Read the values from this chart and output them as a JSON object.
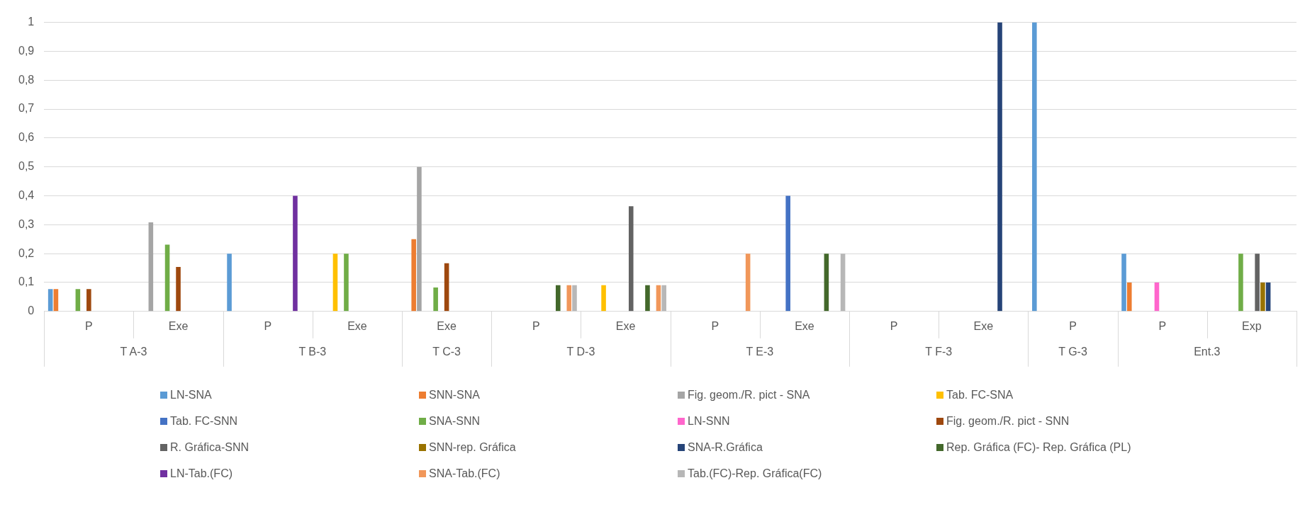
{
  "chart_data": {
    "type": "bar",
    "categories": [
      "P",
      "Exe",
      "P",
      "Exe",
      "Exe",
      "P",
      "Exe",
      "P",
      "Exe",
      "P",
      "Exe",
      "P",
      "P",
      "Exp"
    ],
    "series": [
      {
        "name": "LN-SNA",
        "color": "#5b9bd5",
        "values": [
          0.077,
          null,
          0.2,
          null,
          null,
          null,
          null,
          null,
          null,
          null,
          null,
          1,
          0.2,
          null
        ]
      },
      {
        "name": "SNN-SNA",
        "color": "#ed7d31",
        "values": [
          0.077,
          null,
          null,
          null,
          0.25,
          null,
          null,
          null,
          null,
          null,
          null,
          null,
          0.1,
          null
        ]
      },
      {
        "name": "Fig. geom./R. pict - SNA",
        "color": "#a5a5a5",
        "values": [
          null,
          0.308,
          null,
          null,
          0.5,
          null,
          null,
          null,
          null,
          null,
          null,
          null,
          null,
          null
        ]
      },
      {
        "name": "Tab. FC-SNA",
        "color": "#ffc000",
        "values": [
          null,
          null,
          null,
          0.2,
          null,
          null,
          0.091,
          null,
          null,
          null,
          null,
          null,
          null,
          null
        ]
      },
      {
        "name": "Tab. FC-SNN",
        "color": "#4472c4",
        "values": [
          null,
          null,
          null,
          null,
          null,
          null,
          null,
          null,
          0.4,
          null,
          null,
          null,
          null,
          null
        ]
      },
      {
        "name": "SNA-SNN",
        "color": "#70ad47",
        "values": [
          0.077,
          0.231,
          null,
          0.2,
          0.083,
          null,
          null,
          null,
          null,
          null,
          null,
          null,
          null,
          0.2
        ]
      },
      {
        "name": "LN-SNN",
        "color": "#ff66cc",
        "values": [
          null,
          null,
          null,
          null,
          null,
          null,
          null,
          null,
          null,
          null,
          null,
          null,
          0.1,
          null
        ]
      },
      {
        "name": "Fig. geom./R. pict - SNN",
        "color": "#9e480e",
        "values": [
          0.077,
          0.154,
          null,
          null,
          0.167,
          null,
          null,
          null,
          null,
          null,
          null,
          null,
          null,
          null
        ]
      },
      {
        "name": "R. Gráfica-SNN",
        "color": "#636363",
        "values": [
          null,
          null,
          null,
          null,
          null,
          null,
          0.364,
          null,
          null,
          null,
          null,
          null,
          null,
          0.2
        ]
      },
      {
        "name": "SNN-rep. Gráfica",
        "color": "#997300",
        "values": [
          null,
          null,
          null,
          null,
          null,
          null,
          null,
          null,
          null,
          null,
          null,
          null,
          null,
          0.1
        ]
      },
      {
        "name": "SNA-R.Gráfica",
        "color": "#264478",
        "values": [
          null,
          null,
          null,
          null,
          null,
          null,
          null,
          null,
          null,
          null,
          1,
          null,
          null,
          0.1
        ]
      },
      {
        "name": "Rep. Gráfica (FC)- Rep. Gráfica (PL)",
        "color": "#43682b",
        "values": [
          null,
          null,
          null,
          null,
          null,
          0.091,
          0.091,
          null,
          0.2,
          null,
          null,
          null,
          null,
          null
        ]
      },
      {
        "name": "LN-Tab.(FC)",
        "color": "#7030a0",
        "values": [
          null,
          null,
          0.4,
          null,
          null,
          null,
          null,
          null,
          null,
          null,
          null,
          null,
          null,
          null
        ]
      },
      {
        "name": "SNA-Tab.(FC)",
        "color": "#f1975a",
        "values": [
          null,
          null,
          null,
          null,
          null,
          0.091,
          0.091,
          0.2,
          null,
          null,
          null,
          null,
          null,
          null
        ]
      },
      {
        "name": "Tab.(FC)-Rep. Gráfica(FC)",
        "color": "#b7b7b7",
        "values": [
          null,
          null,
          null,
          null,
          null,
          0.091,
          0.091,
          null,
          0.2,
          null,
          null,
          null,
          null,
          null
        ]
      }
    ],
    "annotations": [
      "T A-3",
      "T B-3",
      "T C-3",
      "T D-3",
      "T E-3",
      "T F-3",
      "T G-3",
      "Ent.3"
    ],
    "ylim": [
      0,
      1
    ],
    "yticks": [
      0,
      {
        "value": 0.1,
        "label": "0,1"
      },
      {
        "value": 0.2,
        "label": "0,2"
      },
      {
        "value": 0.3,
        "label": "0,3"
      },
      {
        "value": 0.4,
        "label": "0,4"
      },
      {
        "value": 0.5,
        "label": "0,5"
      },
      {
        "value": 0.6,
        "label": "0,6"
      },
      {
        "value": 0.7,
        "label": "0,7"
      },
      {
        "value": 0.8,
        "label": "0,8"
      },
      {
        "value": 0.9,
        "label": "0,9"
      },
      1
    ],
    "grid": "y",
    "legend": "bottom"
  }
}
